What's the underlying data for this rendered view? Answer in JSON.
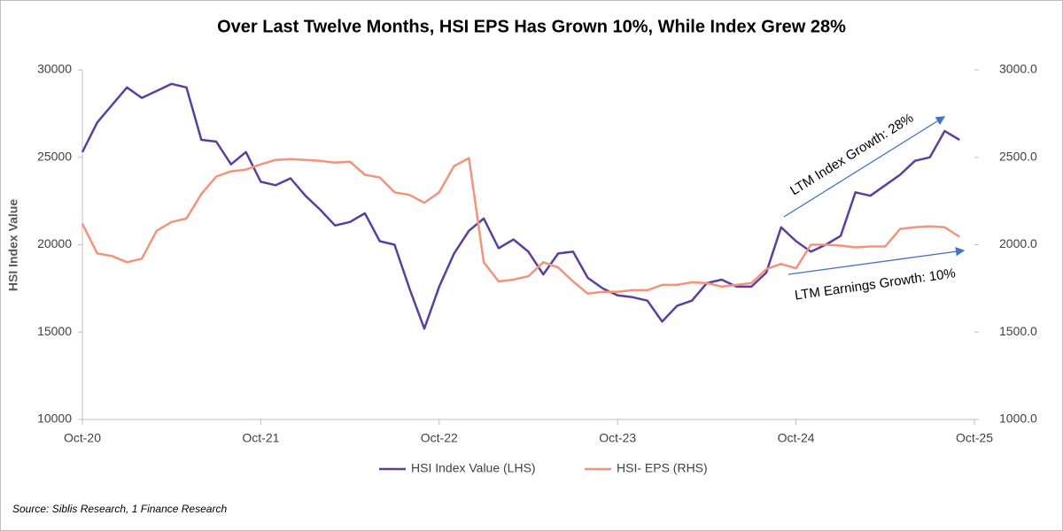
{
  "chart_data": {
    "type": "line",
    "title": "Over Last Twelve Months, HSI EPS Has Grown 10%, While Index Grew 28%",
    "y_label": "HSI Index Value",
    "source": "Source: Siblis Research, 1 Finance Research",
    "annotations": [
      "LTM Index Growth: 28%",
      "LTM Earnings Growth: 10%"
    ],
    "categories": [
      "Oct-20",
      null,
      null,
      null,
      null,
      null,
      null,
      null,
      null,
      null,
      null,
      null,
      "Oct-21",
      null,
      null,
      null,
      null,
      null,
      null,
      null,
      null,
      null,
      null,
      null,
      "Oct-22",
      null,
      null,
      null,
      null,
      null,
      null,
      null,
      null,
      null,
      null,
      null,
      "Oct-23",
      null,
      null,
      null,
      null,
      null,
      null,
      null,
      null,
      null,
      null,
      null,
      "Oct-24",
      null,
      null,
      null,
      null,
      null,
      null,
      null,
      null,
      null,
      null,
      null,
      "Oct-25"
    ],
    "series": [
      {
        "name": "HSI Index Value (LHS)",
        "color": "#5b3f9f",
        "values": [
          25300,
          27000,
          28000,
          29000,
          28400,
          28800,
          29200,
          29000,
          26000,
          25900,
          24600,
          25300,
          23600,
          23400,
          23800,
          22800,
          22000,
          21100,
          21300,
          21800,
          20200,
          20000,
          17500,
          15200,
          17600,
          19500,
          20800,
          21500,
          19800,
          20300,
          19600,
          18300,
          19500,
          19600,
          18100,
          17500,
          17100,
          17000,
          16800,
          15600,
          16500,
          16800,
          17800,
          18000,
          17600,
          17600,
          18400,
          21000,
          20200,
          19600,
          20000,
          20500,
          23000,
          22800,
          23400,
          24000,
          24800,
          25000,
          26500,
          26000,
          null
        ]
      },
      {
        "name": "HSI- EPS (RHS)",
        "color": "#f4937a",
        "axis": "y2",
        "values": [
          2120,
          1950,
          1935,
          1900,
          1920,
          2080,
          2130,
          2150,
          2290,
          2390,
          2420,
          2430,
          2460,
          2485,
          2490,
          2485,
          2480,
          2470,
          2475,
          2400,
          2385,
          2300,
          2285,
          2240,
          2300,
          2450,
          2495,
          1900,
          1790,
          1800,
          1820,
          1900,
          1870,
          1790,
          1720,
          1730,
          1730,
          1740,
          1740,
          1770,
          1770,
          1785,
          1780,
          1760,
          1770,
          1780,
          1860,
          1890,
          1865,
          2000,
          2000,
          1995,
          1985,
          1990,
          1990,
          2090,
          2100,
          2105,
          2100,
          2045,
          null
        ]
      }
    ],
    "ylim": [
      10000,
      30000
    ],
    "yticks": [
      10000,
      15000,
      20000,
      25000,
      30000
    ],
    "y2lim": [
      1000,
      3000
    ],
    "y2ticks": [
      {
        "value": 1000,
        "label": "1000.0"
      },
      {
        "value": 1500,
        "label": "1500.0"
      },
      {
        "value": 2000,
        "label": "2000.0"
      },
      {
        "value": 2500,
        "label": "2500.0"
      },
      {
        "value": 3000,
        "label": "3000.0"
      }
    ],
    "grid": false,
    "legend": "bottom"
  }
}
